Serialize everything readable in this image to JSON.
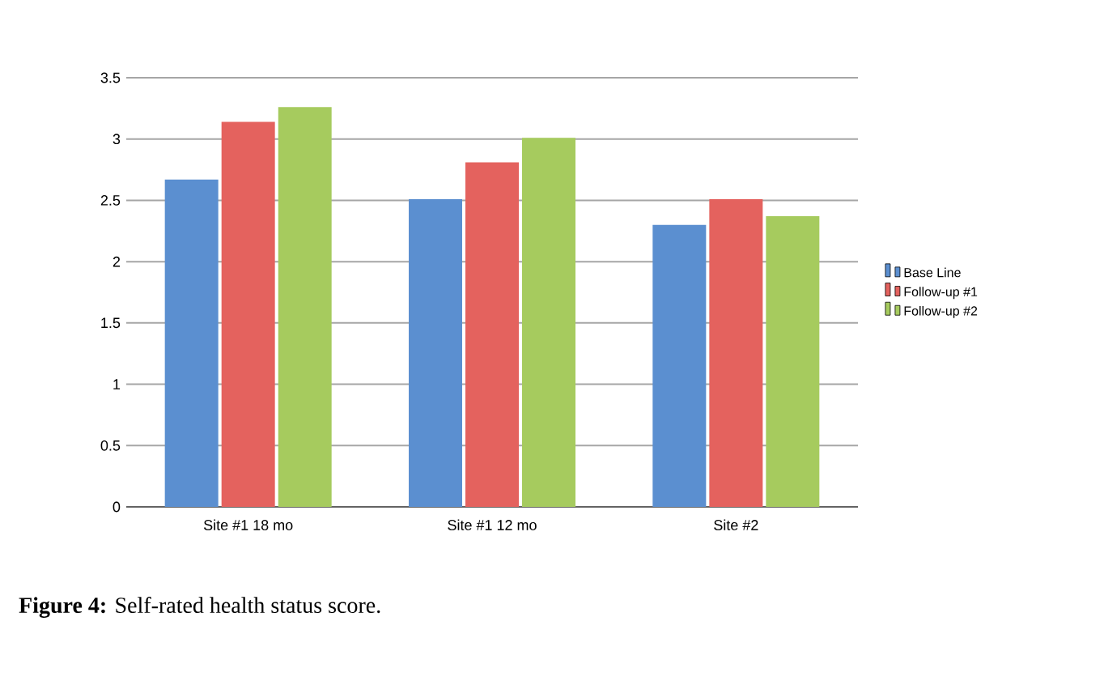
{
  "chart_data": {
    "type": "bar",
    "categories": [
      "Site #1 18 mo",
      "Site #1 12 mo",
      "Site #2"
    ],
    "series": [
      {
        "name": "Base Line",
        "color": "#5b8fd0",
        "values": [
          2.67,
          2.51,
          2.3
        ]
      },
      {
        "name": "Follow-up #1",
        "color": "#e4625e",
        "values": [
          3.14,
          2.81,
          2.51
        ]
      },
      {
        "name": "Follow-up #2",
        "color": "#a6cb5e",
        "values": [
          3.26,
          3.01,
          2.37
        ]
      }
    ],
    "ylim": [
      0,
      3.5
    ],
    "yticks": [
      0,
      0.5,
      1,
      1.5,
      2,
      2.5,
      3,
      3.5
    ],
    "grid": "y",
    "legend": "right",
    "annotations": [
      "**Figure 4:** Self-rated health status score."
    ]
  }
}
